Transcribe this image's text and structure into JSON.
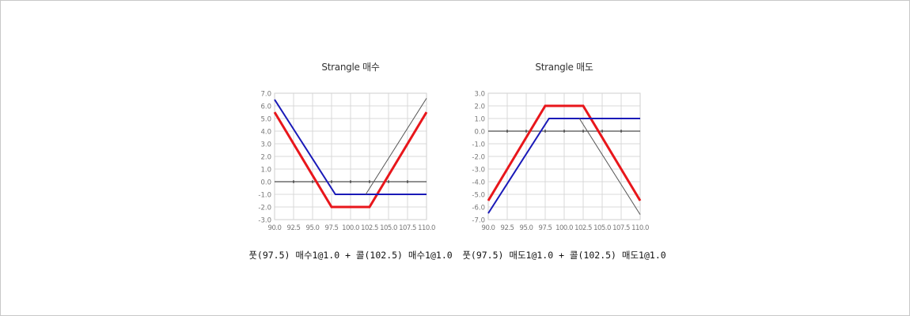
{
  "chart_data": [
    {
      "type": "line",
      "title": "Strangle 매수",
      "caption": "풋(97.5) 매수1@1.0 + 콜(102.5) 매수1@1.0",
      "xlim": [
        90,
        110
      ],
      "ylim": [
        -3,
        7
      ],
      "x_ticks": [
        "90.0",
        "92.5",
        "95.0",
        "97.5",
        "100.0",
        "102.5",
        "105.0",
        "107.5",
        "110.0"
      ],
      "y_ticks": [
        "7.0",
        "6.0",
        "5.0",
        "4.0",
        "3.0",
        "2.0",
        "1.0",
        "0.0",
        "-1.0",
        "-2.0",
        "-3.0"
      ],
      "grid": true,
      "series": [
        {
          "color": "#e8161b",
          "points": [
            [
              90,
              5.5
            ],
            [
              97.5,
              -2.0
            ],
            [
              102.5,
              -2.0
            ],
            [
              110,
              5.5
            ]
          ]
        },
        {
          "color": "#1a1ab8",
          "points": [
            [
              90,
              6.5
            ],
            [
              98,
              -1.0
            ],
            [
              110,
              -1.0
            ]
          ]
        },
        {
          "color": "#555555",
          "points": [
            [
              102,
              -1.0
            ],
            [
              110,
              6.6
            ]
          ]
        }
      ]
    },
    {
      "type": "line",
      "title": "Strangle 매도",
      "caption": "풋(97.5) 매도1@1.0 + 콜(102.5) 매도1@1.0",
      "xlim": [
        90,
        110
      ],
      "ylim": [
        -7,
        3
      ],
      "x_ticks": [
        "90.0",
        "92.5",
        "95.0",
        "97.5",
        "100.0",
        "102.5",
        "105.0",
        "107.5",
        "110.0"
      ],
      "y_ticks": [
        "3.0",
        "2.0",
        "1.0",
        "0.0",
        "-1.0",
        "-2.0",
        "-3.0",
        "-4.0",
        "-5.0",
        "-6.0",
        "-7.0"
      ],
      "grid": true,
      "series": [
        {
          "color": "#e8161b",
          "points": [
            [
              90,
              -5.5
            ],
            [
              97.5,
              2.0
            ],
            [
              102.5,
              2.0
            ],
            [
              110,
              -5.5
            ]
          ]
        },
        {
          "color": "#1a1ab8",
          "points": [
            [
              90,
              -6.5
            ],
            [
              98,
              1.0
            ],
            [
              110,
              1.0
            ]
          ]
        },
        {
          "color": "#555555",
          "points": [
            [
              102,
              1.0
            ],
            [
              110,
              -6.6
            ]
          ]
        }
      ]
    }
  ]
}
